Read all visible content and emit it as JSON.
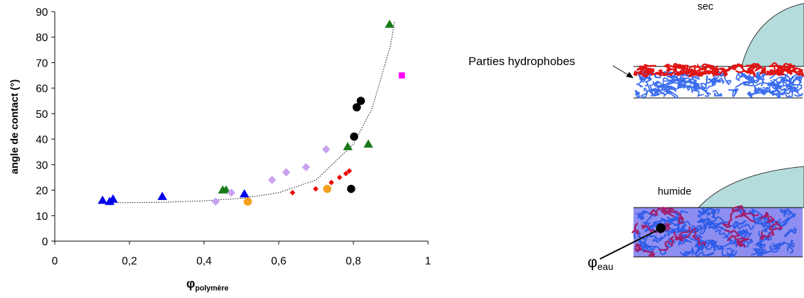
{
  "chart_data": {
    "type": "scatter",
    "ylabel": "angle de contact (°)",
    "xlabel": {
      "symbol": "φ",
      "subscript": "polymère"
    },
    "xlim": [
      0,
      1
    ],
    "xticks": [
      0,
      {
        "value": 0.2,
        "label": "0,2"
      },
      {
        "value": 0.4,
        "label": "0,4"
      },
      {
        "value": 0.6,
        "label": "0,6"
      },
      {
        "value": 0.8,
        "label": "0,8"
      },
      1
    ],
    "ylim": [
      0,
      90
    ],
    "yticks": [
      0,
      10,
      20,
      30,
      40,
      50,
      60,
      70,
      80,
      90
    ],
    "grid": false,
    "series": [
      {
        "color": "#0000ee",
        "marker": "triangle",
        "x": [
          0.128,
          0.147,
          0.156,
          0.288,
          0.508
        ],
        "values": [
          16,
          15.5,
          16.5,
          17.5,
          18.5
        ]
      },
      {
        "color": "#1a7a1a",
        "marker": "triangle",
        "x": [
          0.45,
          0.459,
          0.785,
          0.84,
          0.897
        ],
        "values": [
          20,
          20,
          37,
          38,
          85
        ]
      },
      {
        "color": "#c8a2f0",
        "marker": "diamond",
        "x": [
          0.431,
          0.473,
          0.582,
          0.62,
          0.673,
          0.727
        ],
        "values": [
          15.5,
          19,
          24,
          27,
          29,
          36
        ]
      },
      {
        "color": "#ee0000",
        "marker": "small-diamond",
        "x": [
          0.637,
          0.699,
          0.741,
          0.763,
          0.78,
          0.789
        ],
        "values": [
          19,
          20.5,
          23,
          25,
          26.5,
          27.5
        ]
      },
      {
        "color": "#000000",
        "marker": "circle",
        "x": [
          0.794,
          0.802,
          0.809,
          0.82
        ],
        "values": [
          20.5,
          41,
          52.5,
          55
        ]
      },
      {
        "color": "#f5a020",
        "marker": "circle",
        "x": [
          0.517,
          0.73
        ],
        "values": [
          15.5,
          20.5
        ]
      },
      {
        "color": "#ff00ff",
        "marker": "square",
        "x": [
          0.93
        ],
        "values": [
          65
        ]
      }
    ],
    "trend_line": {
      "color": "#000000",
      "x": [
        0.13,
        0.3,
        0.4,
        0.5,
        0.6,
        0.7,
        0.8,
        0.85,
        0.9,
        0.91
      ],
      "values": [
        15,
        15.3,
        15.8,
        16.8,
        19,
        24,
        38,
        52,
        77,
        86
      ]
    }
  },
  "diagram": {
    "top_label": "sec",
    "hydrophobic_label": "Parties hydrophobes",
    "bottom_label": "humide",
    "water_label": {
      "symbol": "φ",
      "subscript": "eau"
    }
  }
}
